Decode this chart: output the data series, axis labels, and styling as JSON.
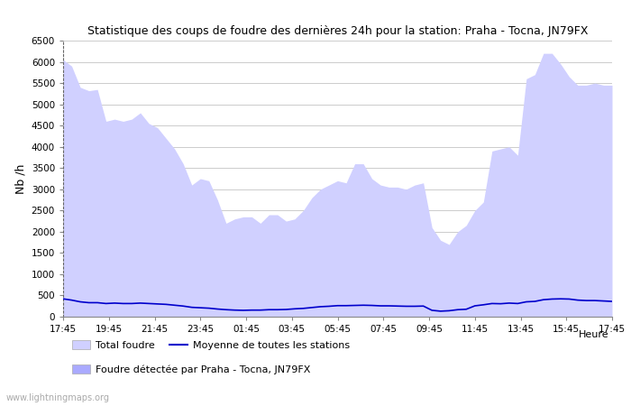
{
  "title": "Statistique des coups de foudre des dernières 24h pour la station: Praha - Tocna, JN79FX",
  "ylabel": "Nb /h",
  "ylim": [
    0,
    6500
  ],
  "yticks": [
    0,
    500,
    1000,
    1500,
    2000,
    2500,
    3000,
    3500,
    4000,
    4500,
    5000,
    5500,
    6000,
    6500
  ],
  "xtick_labels": [
    "17:45",
    "19:45",
    "21:45",
    "23:45",
    "01:45",
    "03:45",
    "05:45",
    "07:45",
    "09:45",
    "11:45",
    "13:45",
    "15:45",
    "17:45"
  ],
  "background_color": "#ffffff",
  "plot_bg_color": "#ffffff",
  "grid_color": "#cccccc",
  "fill_total_color": "#d0d0ff",
  "fill_station_color": "#aaaaff",
  "mean_line_color": "#0000cc",
  "watermark": "www.lightningmaps.org",
  "legend_total": "Total foudre",
  "legend_mean": "Moyenne de toutes les stations",
  "legend_station": "Foudre détectée par Praha - Tocna, JN79FX",
  "heure_label": "Heure",
  "total_foudre": [
    6050,
    5900,
    5400,
    5320,
    5350,
    4600,
    4650,
    4600,
    4650,
    4800,
    4550,
    4450,
    4200,
    3950,
    3600,
    3100,
    3250,
    3200,
    2750,
    2200,
    2300,
    2350,
    2350,
    2200,
    2400,
    2400,
    2250,
    2300,
    2500,
    2800,
    3000,
    3100,
    3200,
    3150,
    3600,
    3600,
    3250,
    3100,
    3050,
    3050,
    3000,
    3100,
    3150,
    2100,
    1800,
    1700,
    2000,
    2150,
    2500,
    2700,
    3900,
    3950,
    4000,
    3800,
    5600,
    5700,
    6200,
    6200,
    5950,
    5650,
    5450,
    5450,
    5500,
    5450,
    5450
  ],
  "station_foudre": [
    0,
    0,
    0,
    0,
    0,
    0,
    0,
    0,
    0,
    0,
    0,
    0,
    0,
    0,
    0,
    0,
    0,
    0,
    0,
    0,
    0,
    0,
    0,
    0,
    0,
    0,
    0,
    0,
    0,
    0,
    0,
    0,
    0,
    0,
    0,
    0,
    0,
    0,
    0,
    0,
    0,
    0,
    0,
    0,
    0,
    0,
    0,
    0,
    0,
    0,
    0,
    0,
    0,
    0,
    0,
    0,
    0,
    0,
    0,
    0,
    0,
    0,
    0,
    0,
    0
  ],
  "mean_line": [
    420,
    390,
    350,
    330,
    330,
    310,
    320,
    310,
    310,
    320,
    310,
    300,
    290,
    270,
    250,
    220,
    210,
    200,
    180,
    165,
    155,
    150,
    155,
    155,
    165,
    165,
    170,
    185,
    195,
    215,
    235,
    245,
    260,
    260,
    265,
    270,
    265,
    255,
    255,
    250,
    245,
    245,
    250,
    150,
    130,
    140,
    165,
    175,
    255,
    280,
    310,
    305,
    320,
    310,
    350,
    360,
    400,
    415,
    420,
    415,
    390,
    380,
    380,
    370,
    360
  ]
}
